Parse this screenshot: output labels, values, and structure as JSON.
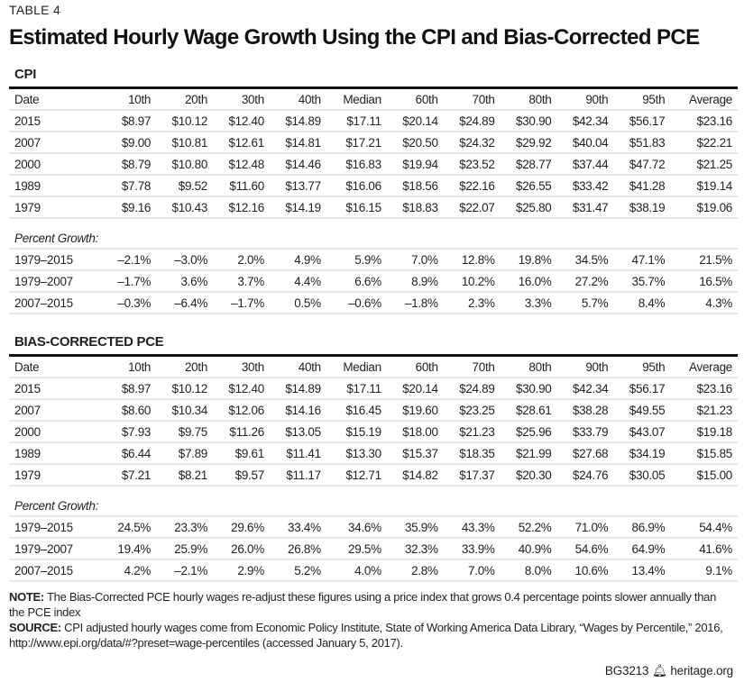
{
  "table_label": "TABLE 4",
  "title": "Estimated Hourly Wage Growth Using the CPI and Bias-Corrected PCE",
  "columns": [
    "Date",
    "10th",
    "20th",
    "30th",
    "40th",
    "Median",
    "60th",
    "70th",
    "80th",
    "90th",
    "95th",
    "Average"
  ],
  "percent_growth_label": "Percent Growth:",
  "sections": [
    {
      "title": "CPI",
      "wages": [
        [
          "2015",
          "$8.97",
          "$10.12",
          "$12.40",
          "$14.89",
          "$17.11",
          "$20.14",
          "$24.89",
          "$30.90",
          "$42.34",
          "$56.17",
          "$23.16"
        ],
        [
          "2007",
          "$9.00",
          "$10.81",
          "$12.61",
          "$14.81",
          "$17.21",
          "$20.50",
          "$24.32",
          "$29.92",
          "$40.04",
          "$51.83",
          "$22.21"
        ],
        [
          "2000",
          "$8.79",
          "$10.80",
          "$12.48",
          "$14.46",
          "$16.83",
          "$19.94",
          "$23.52",
          "$28.77",
          "$37.44",
          "$47.72",
          "$21.25"
        ],
        [
          "1989",
          "$7.78",
          "$9.52",
          "$11.60",
          "$13.77",
          "$16.06",
          "$18.56",
          "$22.16",
          "$26.55",
          "$33.42",
          "$41.28",
          "$19.14"
        ],
        [
          "1979",
          "$9.16",
          "$10.43",
          "$12.16",
          "$14.19",
          "$16.15",
          "$18.83",
          "$22.07",
          "$25.80",
          "$31.47",
          "$38.19",
          "$19.06"
        ]
      ],
      "growth": [
        [
          "1979–2015",
          "–2.1%",
          "–3.0%",
          "2.0%",
          "4.9%",
          "5.9%",
          "7.0%",
          "12.8%",
          "19.8%",
          "34.5%",
          "47.1%",
          "21.5%"
        ],
        [
          "1979–2007",
          "–1.7%",
          "3.6%",
          "3.7%",
          "4.4%",
          "6.6%",
          "8.9%",
          "10.2%",
          "16.0%",
          "27.2%",
          "35.7%",
          "16.5%"
        ],
        [
          "2007–2015",
          "–0.3%",
          "–6.4%",
          "–1.7%",
          "0.5%",
          "–0.6%",
          "–1.8%",
          "2.3%",
          "3.3%",
          "5.7%",
          "8.4%",
          "4.3%"
        ]
      ]
    },
    {
      "title": "BIAS-CORRECTED PCE",
      "wages": [
        [
          "2015",
          "$8.97",
          "$10.12",
          "$12.40",
          "$14.89",
          "$17.11",
          "$20.14",
          "$24.89",
          "$30.90",
          "$42.34",
          "$56.17",
          "$23.16"
        ],
        [
          "2007",
          "$8.60",
          "$10.34",
          "$12.06",
          "$14.16",
          "$16.45",
          "$19.60",
          "$23.25",
          "$28.61",
          "$38.28",
          "$49.55",
          "$21.23"
        ],
        [
          "2000",
          "$7.93",
          "$9.75",
          "$11.26",
          "$13.05",
          "$15.19",
          "$18.00",
          "$21.23",
          "$25.96",
          "$33.79",
          "$43.07",
          "$19.18"
        ],
        [
          "1989",
          "$6.44",
          "$7.89",
          "$9.61",
          "$11.41",
          "$13.30",
          "$15.37",
          "$18.35",
          "$21.99",
          "$27.68",
          "$34.19",
          "$15.85"
        ],
        [
          "1979",
          "$7.21",
          "$8.21",
          "$9.57",
          "$11.17",
          "$12.71",
          "$14.82",
          "$17.37",
          "$20.30",
          "$24.76",
          "$30.05",
          "$15.00"
        ]
      ],
      "growth": [
        [
          "1979–2015",
          "24.5%",
          "23.3%",
          "29.6%",
          "33.4%",
          "34.6%",
          "35.9%",
          "43.3%",
          "52.2%",
          "71.0%",
          "86.9%",
          "54.4%"
        ],
        [
          "1979–2007",
          "19.4%",
          "25.9%",
          "26.0%",
          "26.8%",
          "29.5%",
          "32.3%",
          "33.9%",
          "40.9%",
          "54.6%",
          "64.9%",
          "41.6%"
        ],
        [
          "2007–2015",
          "4.2%",
          "–2.1%",
          "2.9%",
          "5.2%",
          "4.0%",
          "2.8%",
          "7.0%",
          "8.0%",
          "10.6%",
          "13.4%",
          "9.1%"
        ]
      ]
    }
  ],
  "notes": {
    "note_label": "NOTE:",
    "note_text": " The Bias-Corrected PCE hourly wages re-adjust these figures using a price index that grows 0.4 percentage points slower annually than the PCE index",
    "source_label": "SOURCE:",
    "source_text": " CPI adjusted hourly wages come from Economic Policy Institute, State of Working America Data Library, “Wages by Percentile,” 2016, http://www.epi.org/data/#?preset=wage-percentiles (accessed January 5, 2017)."
  },
  "footer": {
    "code": "BG3213",
    "site": "heritage.org",
    "logo_icon": "heritage-bell-icon"
  }
}
